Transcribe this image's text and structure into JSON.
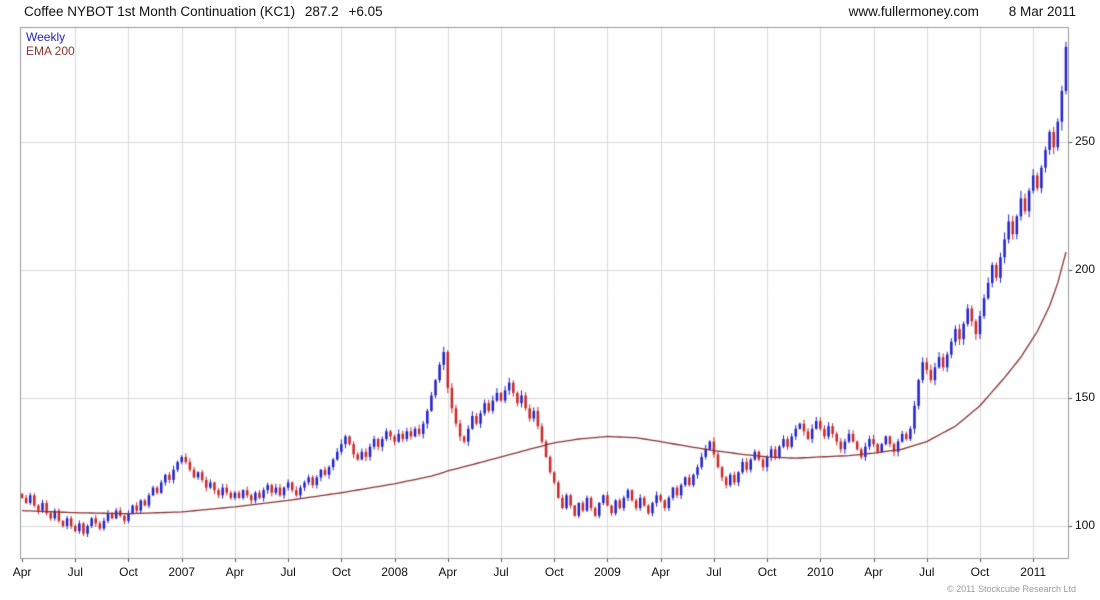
{
  "header": {
    "title": "Coffee NYBOT 1st Month Continuation (KC1)",
    "last_price": "287.2",
    "change": "+6.05",
    "website": "www.fullermoney.com",
    "date": "8 Mar 2011"
  },
  "legend": {
    "series1": "Weekly",
    "series2": "EMA 200"
  },
  "footer": {
    "copyright": "© 2011 Stockcube Research Ltd"
  },
  "colors": {
    "up": "#2424cc",
    "down": "#cc2a2a",
    "ema": "#8b3333",
    "grid": "#d9d9d9",
    "border": "#999999",
    "tick": "#555555"
  },
  "chart_data": {
    "type": "candlestick",
    "title": "Coffee NYBOT 1st Month Continuation (KC1)",
    "frequency": "Weekly",
    "overlay": "EMA 200",
    "last_close": 287.2,
    "change": 6.05,
    "y_ticks": [
      100,
      150,
      200,
      250
    ],
    "y_range": [
      87.5,
      295
    ],
    "x_tick_indices": [
      0,
      13,
      26,
      39,
      52,
      65,
      78,
      91,
      104,
      117,
      130,
      143,
      156,
      169,
      182,
      195,
      208,
      221,
      234,
      247
    ],
    "x_tick_labels": [
      "Apr",
      "Jul",
      "Oct",
      "2007",
      "Apr",
      "Jul",
      "Oct",
      "2008",
      "Apr",
      "Jul",
      "Oct",
      "2009",
      "Apr",
      "Jul",
      "Oct",
      "2010",
      "Apr",
      "Jul",
      "Oct",
      "2011"
    ],
    "closes": [
      111,
      109,
      112,
      108,
      106,
      109,
      105,
      103,
      106,
      102,
      100,
      103,
      100,
      98,
      101,
      97,
      100,
      103,
      101,
      99,
      102,
      105,
      103,
      106,
      104,
      102,
      105,
      108,
      106,
      110,
      108,
      112,
      115,
      113,
      117,
      120,
      118,
      122,
      125,
      127,
      125,
      122,
      119,
      121,
      118,
      115,
      117,
      114,
      112,
      115,
      113,
      111,
      113,
      111,
      114,
      112,
      110,
      113,
      111,
      114,
      116,
      113,
      115,
      112,
      115,
      117,
      114,
      112,
      115,
      117,
      119,
      116,
      119,
      122,
      120,
      123,
      126,
      129,
      132,
      135,
      132,
      128,
      126,
      129,
      127,
      131,
      134,
      131,
      134,
      137,
      135,
      133,
      136,
      134,
      137,
      135,
      138,
      136,
      140,
      145,
      151,
      157,
      163,
      168,
      154,
      146,
      140,
      135,
      133,
      138,
      143,
      140,
      144,
      148,
      145,
      149,
      152,
      149,
      153,
      156,
      152,
      148,
      151,
      146,
      142,
      145,
      139,
      133,
      127,
      121,
      117,
      111,
      107,
      112,
      108,
      104,
      109,
      106,
      111,
      107,
      104,
      109,
      112,
      108,
      105,
      110,
      107,
      111,
      114,
      110,
      107,
      111,
      108,
      105,
      109,
      112,
      110,
      107,
      111,
      115,
      112,
      116,
      119,
      116,
      120,
      123,
      127,
      130,
      133,
      128,
      123,
      119,
      116,
      120,
      117,
      121,
      125,
      122,
      126,
      129,
      126,
      123,
      127,
      130,
      127,
      131,
      134,
      131,
      135,
      138,
      140,
      137,
      134,
      138,
      141,
      138,
      135,
      139,
      136,
      133,
      130,
      133,
      136,
      133,
      130,
      127,
      131,
      134,
      132,
      129,
      132,
      135,
      132,
      129,
      133,
      136,
      134,
      138,
      147,
      157,
      164,
      161,
      157,
      162,
      166,
      162,
      167,
      172,
      177,
      173,
      179,
      185,
      180,
      175,
      182,
      189,
      195,
      202,
      197,
      205,
      212,
      219,
      214,
      221,
      228,
      223,
      231,
      237,
      232,
      240,
      247,
      254,
      248,
      258,
      270,
      287.2
    ],
    "ema_points": [
      [
        0,
        106
      ],
      [
        13,
        105.2
      ],
      [
        26,
        104.8
      ],
      [
        39,
        105.5
      ],
      [
        52,
        107.5
      ],
      [
        65,
        110
      ],
      [
        78,
        113
      ],
      [
        91,
        116.5
      ],
      [
        100,
        119.5
      ],
      [
        104,
        121.5
      ],
      [
        110,
        124
      ],
      [
        117,
        127
      ],
      [
        124,
        130
      ],
      [
        130,
        132.5
      ],
      [
        136,
        134
      ],
      [
        143,
        135
      ],
      [
        150,
        134.5
      ],
      [
        156,
        133
      ],
      [
        163,
        131
      ],
      [
        169,
        129.5
      ],
      [
        176,
        128
      ],
      [
        182,
        127
      ],
      [
        189,
        126.5
      ],
      [
        195,
        127
      ],
      [
        202,
        127.5
      ],
      [
        208,
        128.5
      ],
      [
        215,
        130
      ],
      [
        221,
        133
      ],
      [
        228,
        139
      ],
      [
        234,
        147
      ],
      [
        240,
        158
      ],
      [
        244,
        166
      ],
      [
        248,
        176
      ],
      [
        251,
        186
      ],
      [
        253,
        195
      ],
      [
        255,
        207
      ]
    ]
  }
}
